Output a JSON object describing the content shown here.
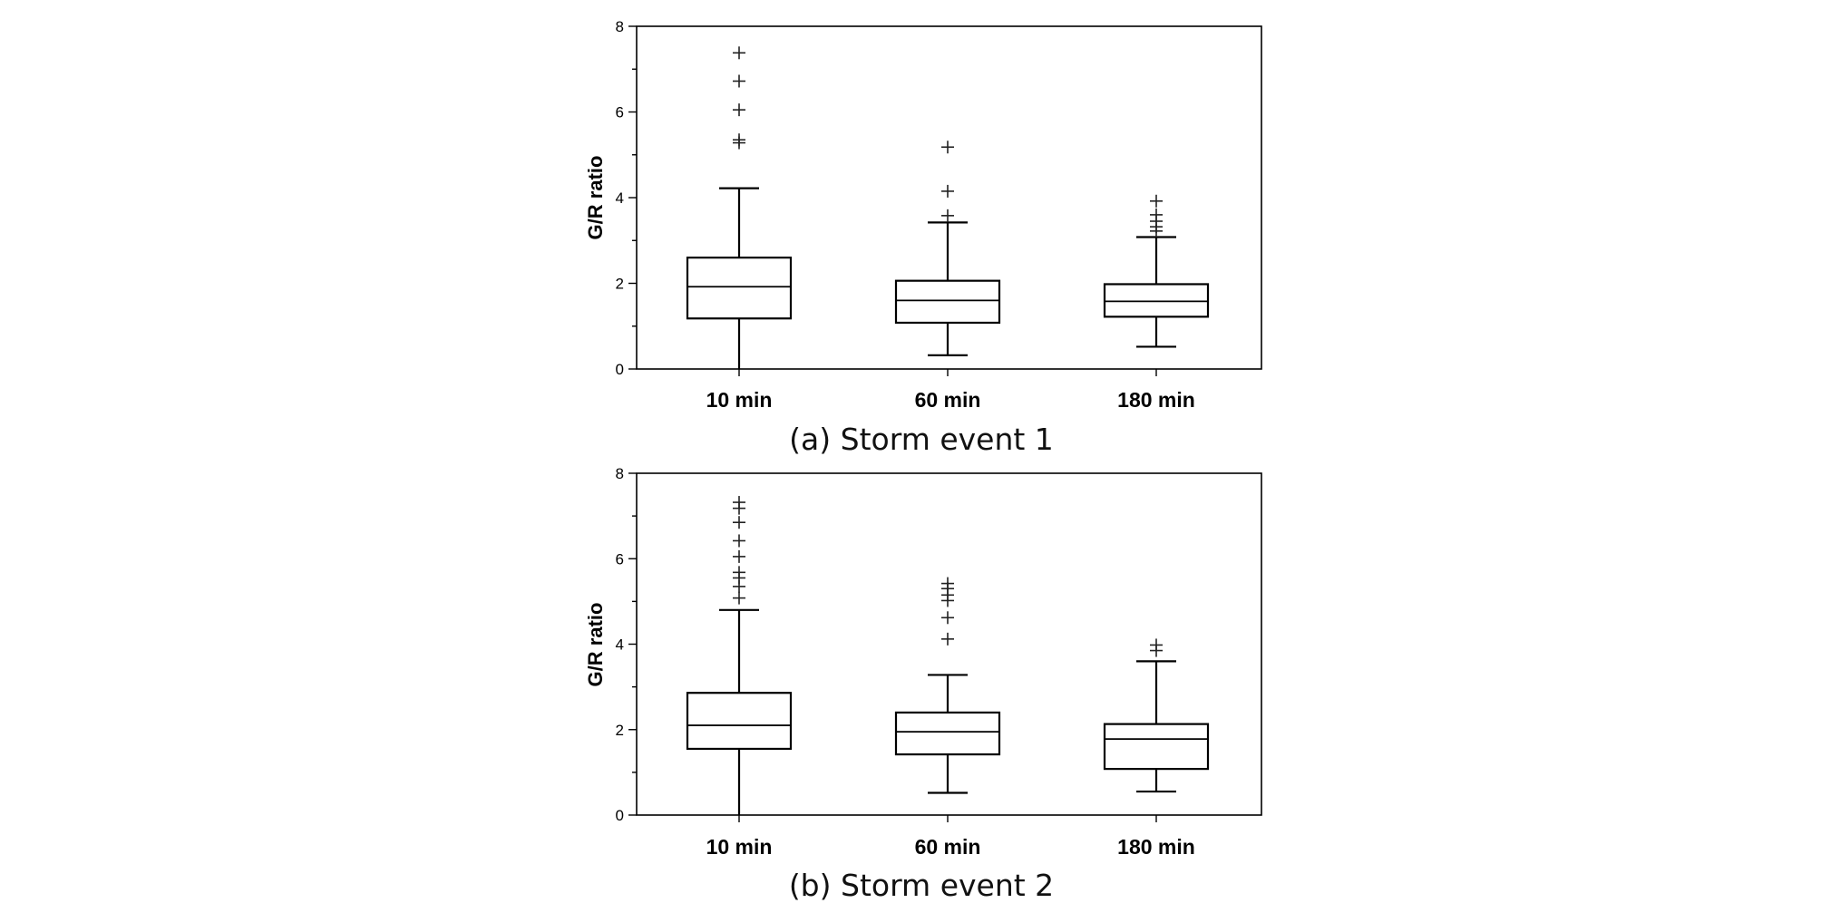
{
  "chart_data": [
    {
      "type": "box",
      "caption": "(a) Storm event 1",
      "ylabel": "G/R ratio",
      "xlabel": "",
      "ylim": [
        0,
        8
      ],
      "yticks": [
        0,
        2,
        4,
        6,
        8
      ],
      "grid": false,
      "categories": [
        "10 min",
        "60 min",
        "180 min"
      ],
      "boxes": [
        {
          "category": "10 min",
          "whisker_low": 0.0,
          "q1": 1.18,
          "median": 1.92,
          "q3": 2.6,
          "whisker_high": 4.22,
          "outliers": [
            5.28,
            5.35,
            6.05,
            6.72,
            7.38
          ]
        },
        {
          "category": "60 min",
          "whisker_low": 0.32,
          "q1": 1.08,
          "median": 1.6,
          "q3": 2.06,
          "whisker_high": 3.42,
          "outliers": [
            3.58,
            4.15,
            5.18
          ]
        },
        {
          "category": "180 min",
          "whisker_low": 0.52,
          "q1": 1.22,
          "median": 1.58,
          "q3": 1.98,
          "whisker_high": 3.08,
          "outliers": [
            3.22,
            3.32,
            3.45,
            3.6,
            3.92
          ]
        }
      ]
    },
    {
      "type": "box",
      "caption": "(b) Storm event 2",
      "ylabel": "G/R ratio",
      "xlabel": "",
      "ylim": [
        0,
        8
      ],
      "yticks": [
        0,
        2,
        4,
        6,
        8
      ],
      "grid": false,
      "categories": [
        "10 min",
        "60 min",
        "180 min"
      ],
      "boxes": [
        {
          "category": "10 min",
          "whisker_low": 0.0,
          "q1": 1.55,
          "median": 2.1,
          "q3": 2.86,
          "whisker_high": 4.8,
          "outliers": [
            5.08,
            5.35,
            5.55,
            5.68,
            6.05,
            6.42,
            6.85,
            7.18,
            7.32
          ]
        },
        {
          "category": "60 min",
          "whisker_low": 0.52,
          "q1": 1.42,
          "median": 1.95,
          "q3": 2.4,
          "whisker_high": 3.28,
          "outliers": [
            4.12,
            4.62,
            5.02,
            5.15,
            5.3,
            5.42
          ]
        },
        {
          "category": "180 min",
          "whisker_low": 0.55,
          "q1": 1.08,
          "median": 1.78,
          "q3": 2.13,
          "whisker_high": 3.6,
          "outliers": [
            3.85,
            3.98
          ]
        }
      ]
    }
  ]
}
